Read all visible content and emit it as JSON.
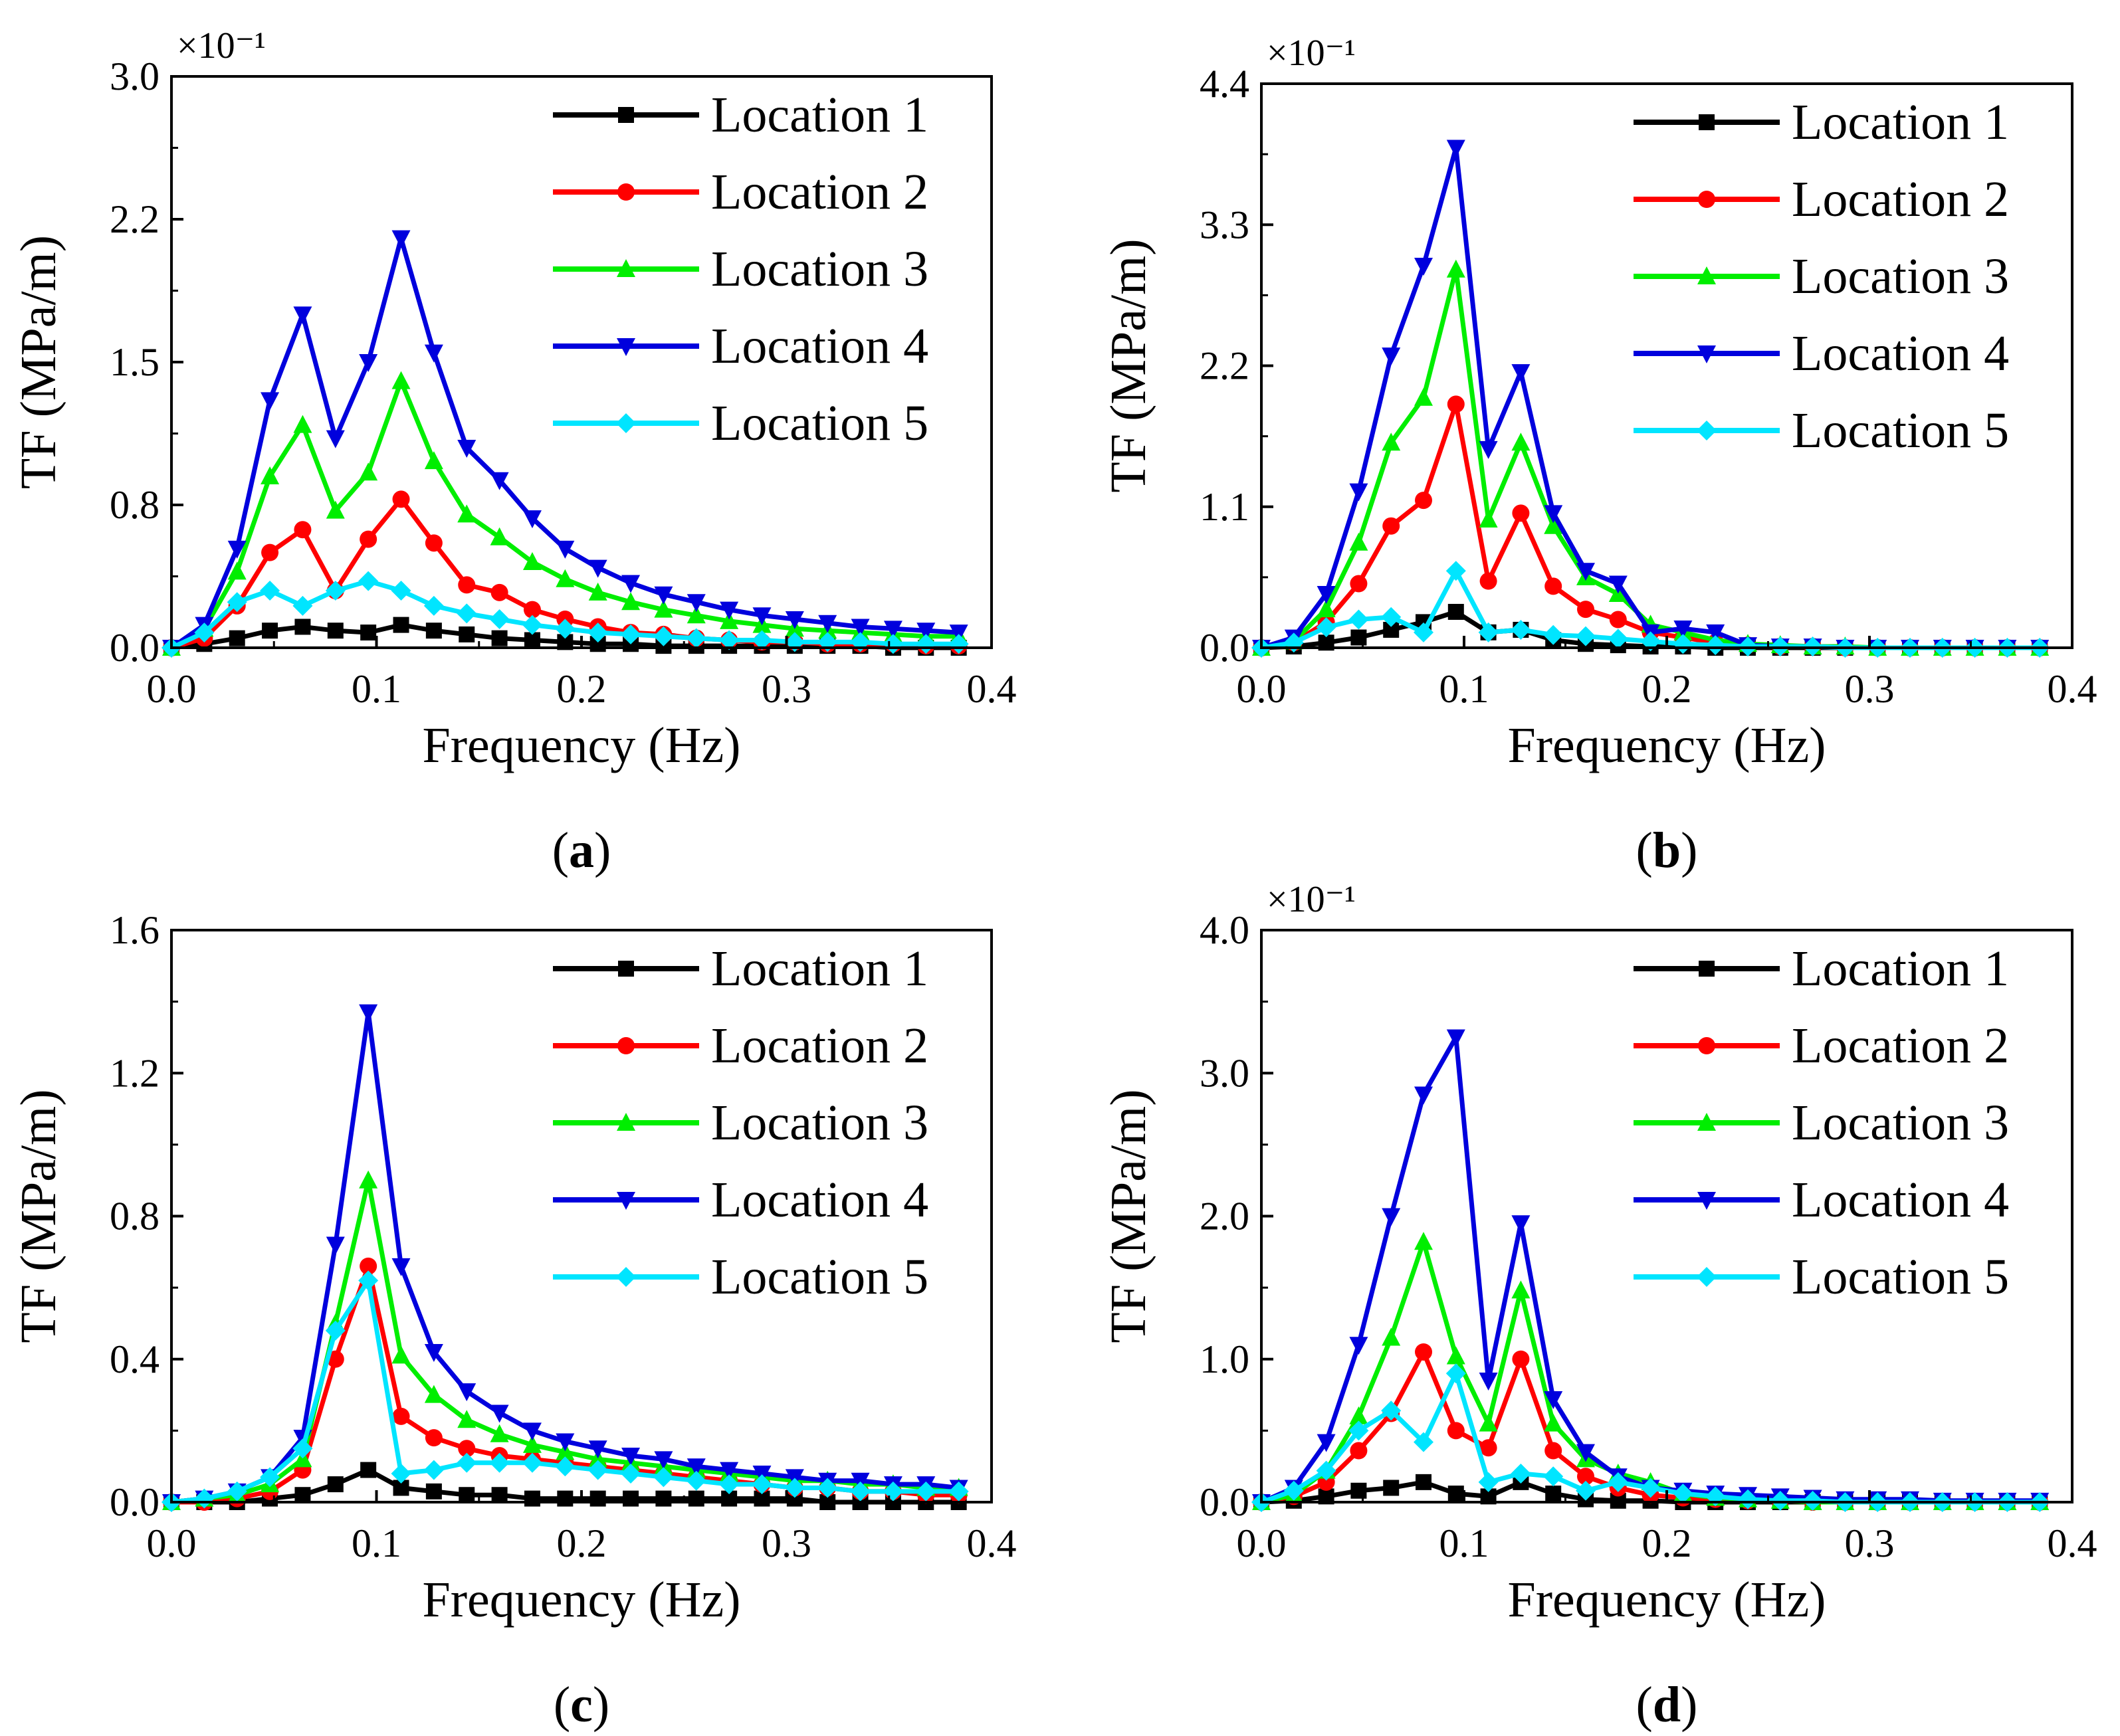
{
  "legend_prefix": "Location",
  "series_styles": [
    {
      "name": "Location 1",
      "color": "#000000",
      "marker": "square"
    },
    {
      "name": "Location 2",
      "color": "#ff0000",
      "marker": "circle"
    },
    {
      "name": "Location 3",
      "color": "#00ee00",
      "marker": "triangle-up"
    },
    {
      "name": "Location 4",
      "color": "#0000dd",
      "marker": "triangle-down"
    },
    {
      "name": "Location 5",
      "color": "#00e5ff",
      "marker": "diamond"
    }
  ],
  "chart_data": [
    {
      "id": "a",
      "type": "line",
      "panel_label": "(a)",
      "panel_letter": "a",
      "xlabel": "Frequency (Hz)",
      "ylabel": "TF (MPa/m)",
      "multiplier": "×10⁻¹",
      "xlim": [
        0,
        0.4
      ],
      "ylim": [
        0,
        3.0
      ],
      "xticks": [
        "0.0",
        "0.1",
        "0.2",
        "0.3",
        "0.4"
      ],
      "yticks": [
        "0.0",
        "0.8",
        "1.5",
        "2.2",
        "3.0"
      ],
      "ytick_values": [
        0,
        0.75,
        1.5,
        2.25,
        3.0
      ],
      "x": [
        0,
        0.016,
        0.032,
        0.048,
        0.064,
        0.08,
        0.096,
        0.112,
        0.128,
        0.144,
        0.16,
        0.176,
        0.192,
        0.208,
        0.224,
        0.24,
        0.256,
        0.272,
        0.288,
        0.304,
        0.32,
        0.336,
        0.352,
        0.368,
        0.384
      ],
      "series": [
        {
          "name": "Location 1",
          "values": [
            0,
            0.02,
            0.05,
            0.09,
            0.11,
            0.09,
            0.08,
            0.12,
            0.09,
            0.07,
            0.05,
            0.04,
            0.03,
            0.02,
            0.02,
            0.01,
            0.01,
            0.01,
            0.01,
            0.01,
            0.01,
            0.01,
            0.0,
            0.0,
            0.0
          ]
        },
        {
          "name": "Location 2",
          "values": [
            0,
            0.05,
            0.22,
            0.5,
            0.62,
            0.3,
            0.57,
            0.78,
            0.55,
            0.33,
            0.29,
            0.2,
            0.15,
            0.11,
            0.08,
            0.07,
            0.05,
            0.04,
            0.03,
            0.03,
            0.02,
            0.02,
            0.02,
            0.01,
            0.01
          ]
        },
        {
          "name": "Location 3",
          "values": [
            0,
            0.1,
            0.4,
            0.9,
            1.17,
            0.72,
            0.92,
            1.4,
            0.98,
            0.7,
            0.58,
            0.45,
            0.36,
            0.29,
            0.24,
            0.2,
            0.17,
            0.14,
            0.12,
            0.1,
            0.09,
            0.08,
            0.07,
            0.06,
            0.06
          ]
        },
        {
          "name": "Location 4",
          "values": [
            0,
            0.12,
            0.52,
            1.3,
            1.75,
            1.1,
            1.5,
            2.15,
            1.55,
            1.05,
            0.88,
            0.68,
            0.52,
            0.42,
            0.34,
            0.28,
            0.24,
            0.2,
            0.17,
            0.15,
            0.13,
            0.11,
            0.1,
            0.09,
            0.08
          ]
        },
        {
          "name": "Location 5",
          "values": [
            0,
            0.08,
            0.24,
            0.3,
            0.22,
            0.3,
            0.35,
            0.3,
            0.22,
            0.18,
            0.15,
            0.12,
            0.1,
            0.08,
            0.07,
            0.06,
            0.05,
            0.04,
            0.04,
            0.03,
            0.03,
            0.03,
            0.02,
            0.02,
            0.02
          ]
        }
      ]
    },
    {
      "id": "b",
      "type": "line",
      "panel_label": "(b)",
      "panel_letter": "b",
      "xlabel": "Frequency (Hz)",
      "ylabel": "TF (MPa/m)",
      "multiplier": "×10⁻¹",
      "xlim": [
        0,
        0.4
      ],
      "ylim": [
        0,
        4.4
      ],
      "xticks": [
        "0.0",
        "0.1",
        "0.2",
        "0.3",
        "0.4"
      ],
      "yticks": [
        "0.0",
        "1.1",
        "2.2",
        "3.3",
        "4.4"
      ],
      "ytick_values": [
        0,
        1.1,
        2.2,
        3.3,
        4.4
      ],
      "x": [
        0,
        0.016,
        0.032,
        0.048,
        0.064,
        0.08,
        0.096,
        0.112,
        0.128,
        0.144,
        0.16,
        0.176,
        0.192,
        0.208,
        0.224,
        0.24,
        0.256,
        0.272,
        0.288,
        0.304,
        0.32,
        0.336,
        0.352,
        0.368,
        0.384
      ],
      "series": [
        {
          "name": "Location 1",
          "values": [
            0,
            0.01,
            0.04,
            0.08,
            0.14,
            0.2,
            0.28,
            0.12,
            0.14,
            0.06,
            0.03,
            0.02,
            0.01,
            0.01,
            0.0,
            0.0,
            0.0,
            0.0,
            0.0,
            0.0,
            0.0,
            0.0,
            0.0,
            0.0,
            0.0
          ]
        },
        {
          "name": "Location 2",
          "values": [
            0,
            0.04,
            0.2,
            0.5,
            0.95,
            1.15,
            1.9,
            0.52,
            1.05,
            0.48,
            0.3,
            0.22,
            0.12,
            0.08,
            0.04,
            0.02,
            0.01,
            0.01,
            0.0,
            0.0,
            0.0,
            0.0,
            0.0,
            0.0,
            0.0
          ]
        },
        {
          "name": "Location 3",
          "values": [
            0,
            0.05,
            0.3,
            0.82,
            1.6,
            1.95,
            2.95,
            1.0,
            1.6,
            0.95,
            0.55,
            0.42,
            0.18,
            0.12,
            0.06,
            0.03,
            0.02,
            0.01,
            0.01,
            0.0,
            0.0,
            0.0,
            0.0,
            0.0,
            0.0
          ]
        },
        {
          "name": "Location 4",
          "values": [
            0,
            0.08,
            0.42,
            1.22,
            2.28,
            2.98,
            3.9,
            1.55,
            2.15,
            1.05,
            0.6,
            0.5,
            0.12,
            0.15,
            0.12,
            0.02,
            0.01,
            0.01,
            0.0,
            0.0,
            0.0,
            0.0,
            0.0,
            0.0,
            0.0
          ]
        },
        {
          "name": "Location 5",
          "values": [
            0,
            0.04,
            0.16,
            0.22,
            0.24,
            0.12,
            0.6,
            0.12,
            0.14,
            0.1,
            0.09,
            0.07,
            0.05,
            0.03,
            0.02,
            0.01,
            0.01,
            0.01,
            0.0,
            0.0,
            0.0,
            0.0,
            0.0,
            0.0,
            0.0
          ]
        }
      ]
    },
    {
      "id": "c",
      "type": "line",
      "panel_label": "(c)",
      "panel_letter": "c",
      "xlabel": "Frequency (Hz)",
      "ylabel": "TF (MPa/m)",
      "multiplier": "",
      "xlim": [
        0,
        0.4
      ],
      "ylim": [
        0,
        1.6
      ],
      "xticks": [
        "0.0",
        "0.1",
        "0.2",
        "0.3",
        "0.4"
      ],
      "yticks": [
        "0.0",
        "0.4",
        "0.8",
        "1.2",
        "1.6"
      ],
      "ytick_values": [
        0,
        0.4,
        0.8,
        1.2,
        1.6
      ],
      "x": [
        0,
        0.016,
        0.032,
        0.048,
        0.064,
        0.08,
        0.096,
        0.112,
        0.128,
        0.144,
        0.16,
        0.176,
        0.192,
        0.208,
        0.224,
        0.24,
        0.256,
        0.272,
        0.288,
        0.304,
        0.32,
        0.336,
        0.352,
        0.368,
        0.384
      ],
      "series": [
        {
          "name": "Location 1",
          "values": [
            0,
            0.0,
            0.0,
            0.01,
            0.02,
            0.05,
            0.09,
            0.04,
            0.03,
            0.02,
            0.02,
            0.01,
            0.01,
            0.01,
            0.01,
            0.01,
            0.01,
            0.01,
            0.01,
            0.01,
            0.0,
            0.0,
            0.0,
            0.0,
            0.0
          ]
        },
        {
          "name": "Location 2",
          "values": [
            0,
            0.0,
            0.01,
            0.03,
            0.09,
            0.4,
            0.66,
            0.24,
            0.18,
            0.15,
            0.13,
            0.12,
            0.11,
            0.1,
            0.09,
            0.08,
            0.07,
            0.06,
            0.05,
            0.04,
            0.04,
            0.03,
            0.03,
            0.02,
            0.02
          ]
        },
        {
          "name": "Location 3",
          "values": [
            0,
            0.01,
            0.02,
            0.05,
            0.12,
            0.5,
            0.9,
            0.41,
            0.3,
            0.23,
            0.19,
            0.16,
            0.14,
            0.12,
            0.11,
            0.1,
            0.09,
            0.08,
            0.07,
            0.06,
            0.06,
            0.05,
            0.05,
            0.04,
            0.04
          ]
        },
        {
          "name": "Location 4",
          "values": [
            0,
            0.01,
            0.03,
            0.07,
            0.18,
            0.72,
            1.37,
            0.66,
            0.42,
            0.31,
            0.25,
            0.2,
            0.17,
            0.15,
            0.13,
            0.12,
            0.1,
            0.09,
            0.08,
            0.07,
            0.06,
            0.06,
            0.05,
            0.05,
            0.04
          ]
        },
        {
          "name": "Location 5",
          "values": [
            0,
            0.01,
            0.03,
            0.07,
            0.15,
            0.48,
            0.62,
            0.08,
            0.09,
            0.11,
            0.11,
            0.11,
            0.1,
            0.09,
            0.08,
            0.07,
            0.06,
            0.05,
            0.05,
            0.04,
            0.04,
            0.03,
            0.03,
            0.03,
            0.03
          ]
        }
      ]
    },
    {
      "id": "d",
      "type": "line",
      "panel_label": "(d)",
      "panel_letter": "d",
      "xlabel": "Frequency (Hz)",
      "ylabel": "TF (MPa/m)",
      "multiplier": "×10⁻¹",
      "xlim": [
        0,
        0.4
      ],
      "ylim": [
        0,
        4.0
      ],
      "xticks": [
        "0.0",
        "0.1",
        "0.2",
        "0.3",
        "0.4"
      ],
      "yticks": [
        "0.0",
        "1.0",
        "2.0",
        "3.0",
        "4.0"
      ],
      "ytick_values": [
        0,
        1.0,
        2.0,
        3.0,
        4.0
      ],
      "x": [
        0,
        0.016,
        0.032,
        0.048,
        0.064,
        0.08,
        0.096,
        0.112,
        0.128,
        0.144,
        0.16,
        0.176,
        0.192,
        0.208,
        0.224,
        0.24,
        0.256,
        0.272,
        0.288,
        0.304,
        0.32,
        0.336,
        0.352,
        0.368,
        0.384
      ],
      "series": [
        {
          "name": "Location 1",
          "values": [
            0,
            0.01,
            0.04,
            0.08,
            0.1,
            0.14,
            0.06,
            0.04,
            0.14,
            0.06,
            0.02,
            0.01,
            0.01,
            0.0,
            0.0,
            0.0,
            0.0,
            0.0,
            0.0,
            0.0,
            0.0,
            0.0,
            0.0,
            0.0,
            0.0
          ]
        },
        {
          "name": "Location 2",
          "values": [
            0,
            0.04,
            0.14,
            0.36,
            0.62,
            1.05,
            0.5,
            0.38,
            1.0,
            0.36,
            0.18,
            0.1,
            0.05,
            0.03,
            0.02,
            0.01,
            0.01,
            0.0,
            0.0,
            0.0,
            0.0,
            0.0,
            0.0,
            0.0,
            0.0
          ]
        },
        {
          "name": "Location 3",
          "values": [
            0,
            0.05,
            0.22,
            0.6,
            1.15,
            1.82,
            1.02,
            0.55,
            1.48,
            0.55,
            0.3,
            0.2,
            0.14,
            0.06,
            0.03,
            0.02,
            0.01,
            0.0,
            0.0,
            0.0,
            0.0,
            0.0,
            0.0,
            0.0,
            0.0
          ]
        },
        {
          "name": "Location 4",
          "values": [
            0,
            0.1,
            0.42,
            1.1,
            2.0,
            2.85,
            3.25,
            0.85,
            1.95,
            0.72,
            0.35,
            0.18,
            0.1,
            0.08,
            0.06,
            0.05,
            0.04,
            0.03,
            0.02,
            0.02,
            0.02,
            0.01,
            0.01,
            0.01,
            0.01
          ]
        },
        {
          "name": "Location 5",
          "values": [
            0,
            0.08,
            0.22,
            0.5,
            0.64,
            0.42,
            0.9,
            0.14,
            0.2,
            0.18,
            0.08,
            0.14,
            0.1,
            0.06,
            0.04,
            0.02,
            0.01,
            0.01,
            0.0,
            0.0,
            0.0,
            0.0,
            0.0,
            0.0,
            0.0
          ]
        }
      ]
    }
  ]
}
